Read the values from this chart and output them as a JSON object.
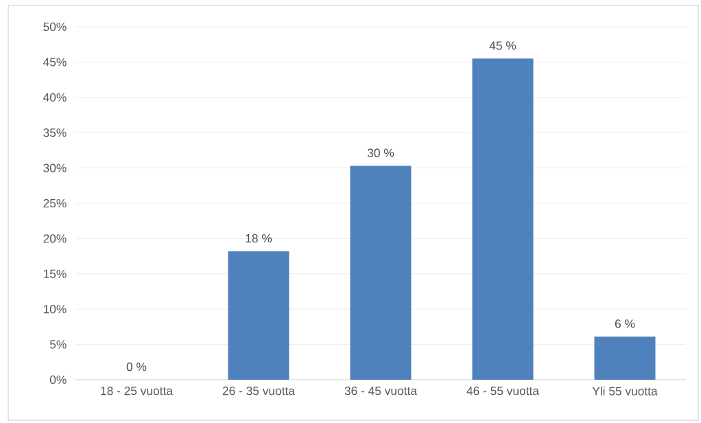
{
  "chart_data": {
    "type": "bar",
    "categories": [
      "18 - 25 vuotta",
      "26 - 35 vuotta",
      "36 - 45 vuotta",
      "46 - 55 vuotta",
      "Yli 55 vuotta"
    ],
    "values": [
      0,
      18.2,
      30.3,
      45.5,
      6.1
    ],
    "value_labels": [
      "0 %",
      "18 %",
      "30 %",
      "45 %",
      "6 %"
    ],
    "color": "#4f81bd",
    "ylim": [
      0,
      50
    ],
    "yticks": [
      {
        "value": 0,
        "label": "0%"
      },
      {
        "value": 5,
        "label": "5%"
      },
      {
        "value": 10,
        "label": "10%"
      },
      {
        "value": 15,
        "label": "15%"
      },
      {
        "value": 20,
        "label": "20%"
      },
      {
        "value": 25,
        "label": "25%"
      },
      {
        "value": 30,
        "label": "30%"
      },
      {
        "value": 35,
        "label": "35%"
      },
      {
        "value": 40,
        "label": "40%"
      },
      {
        "value": 45,
        "label": "45%"
      },
      {
        "value": 50,
        "label": "50%"
      }
    ],
    "grid": "y"
  }
}
